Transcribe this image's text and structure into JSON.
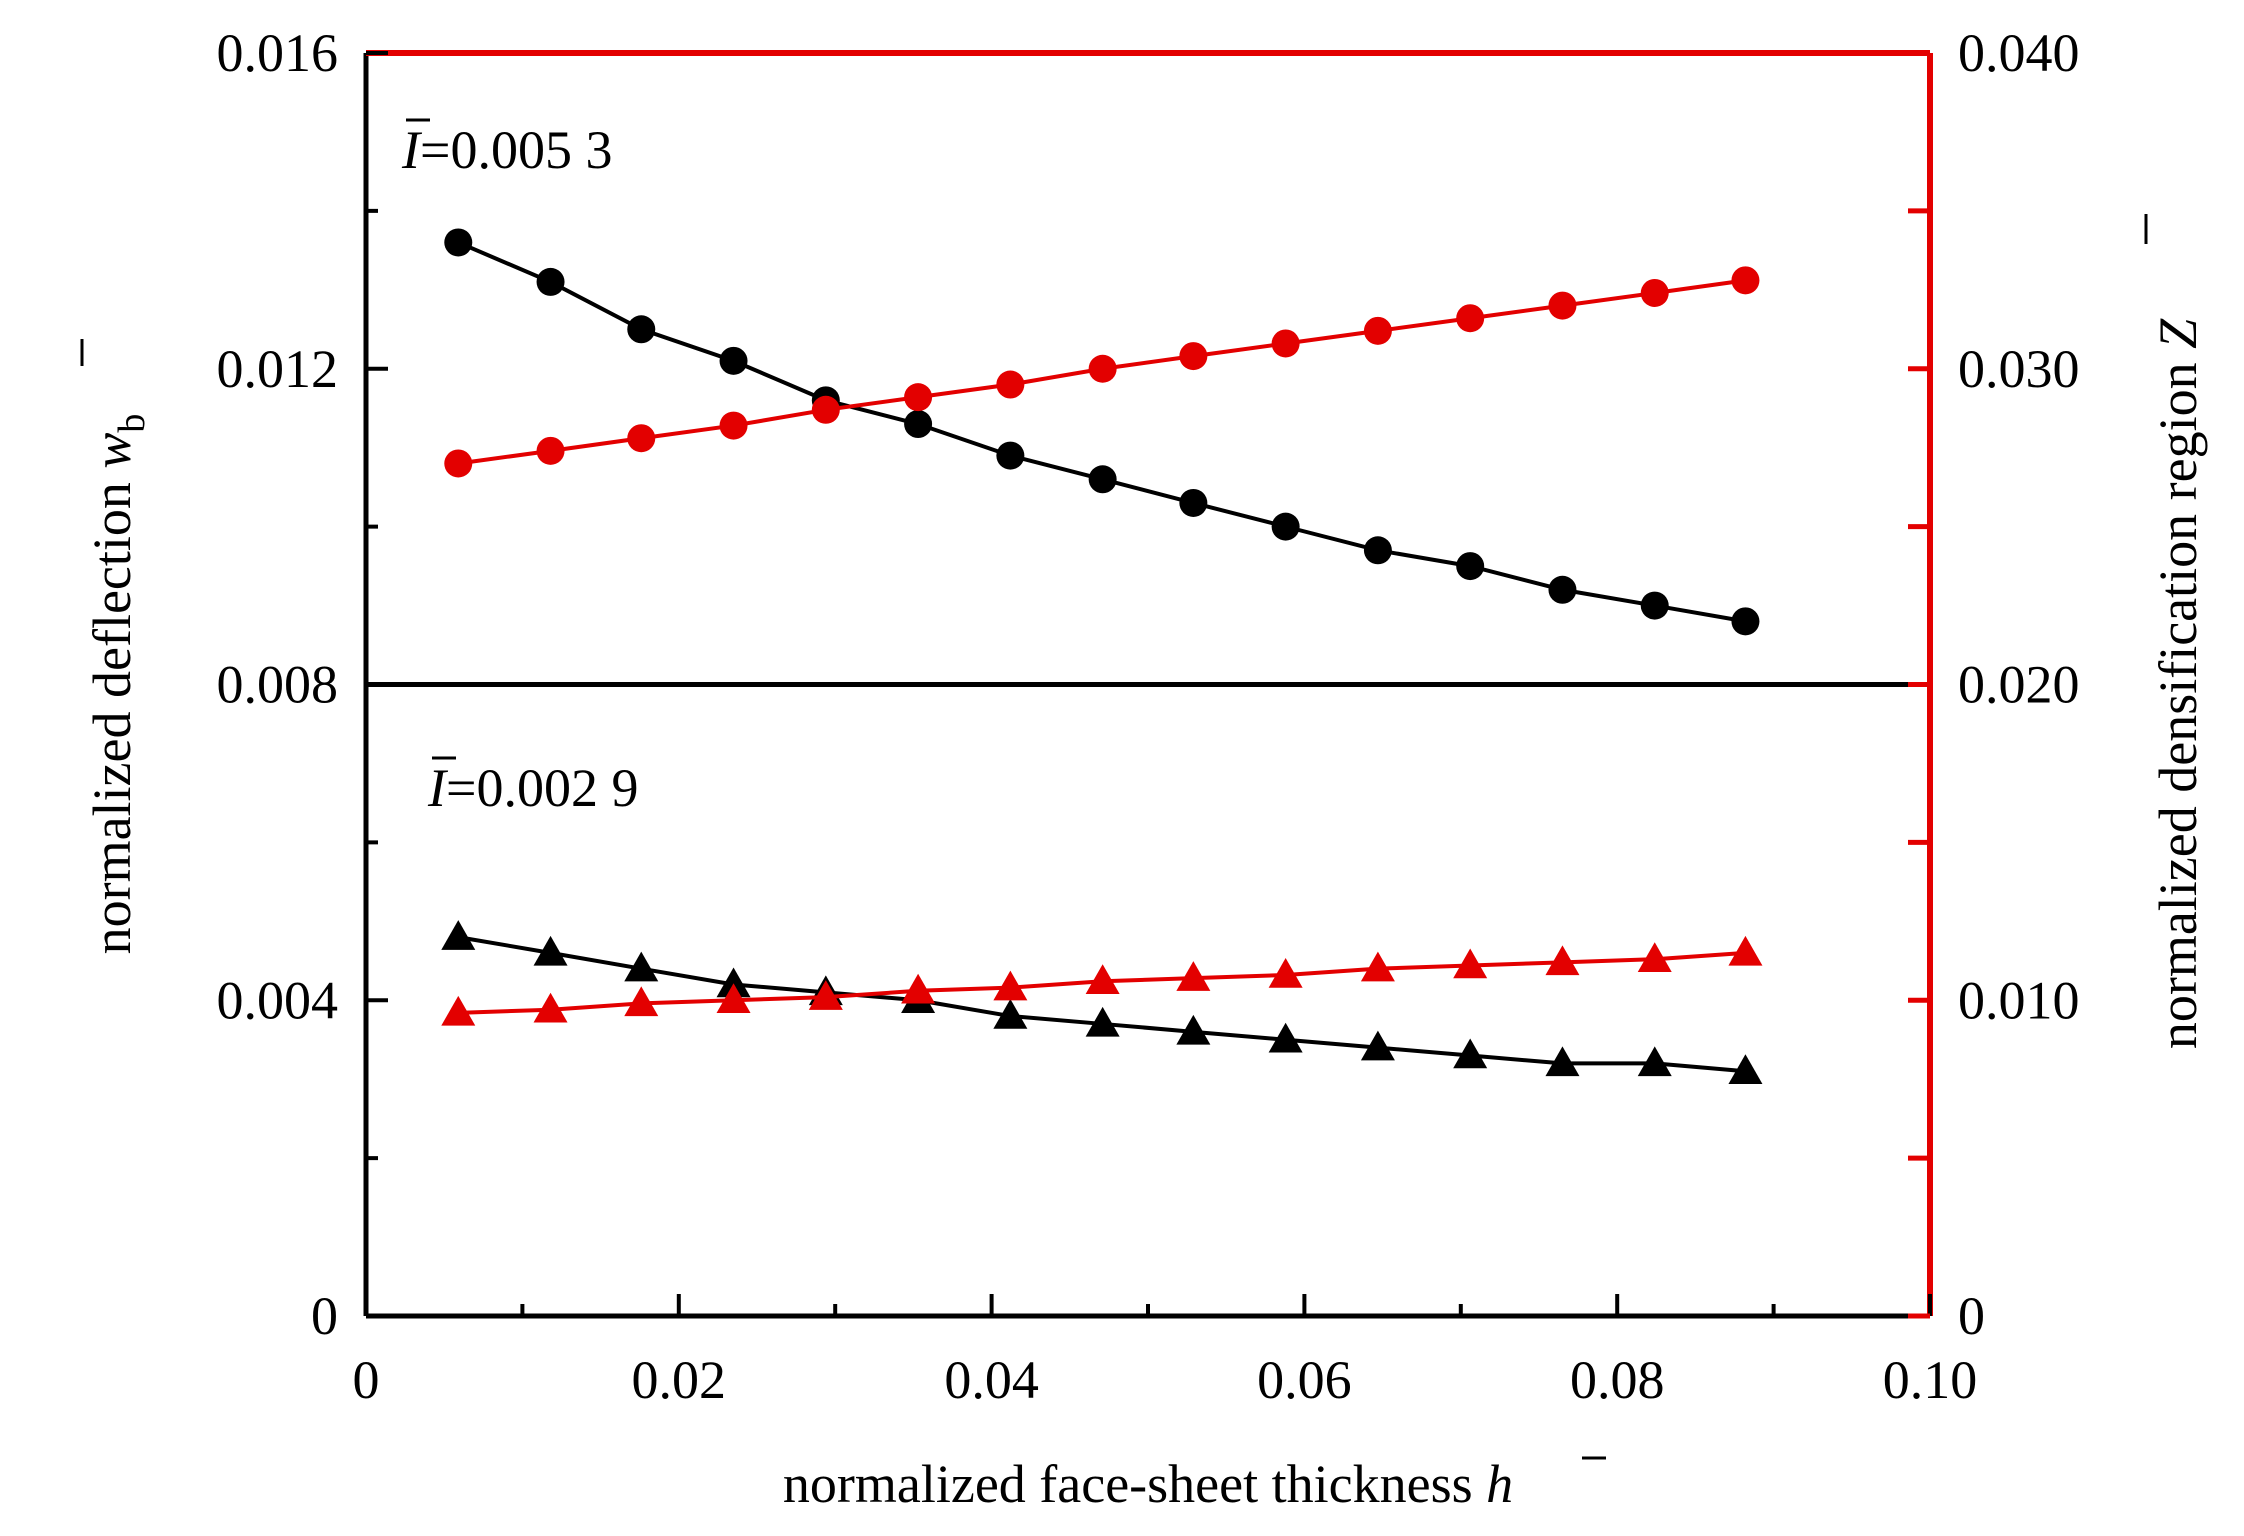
{
  "chart_data": {
    "type": "line",
    "xlabel": "normalized face-sheet thickness",
    "xlabel_symbol": "h",
    "ylabel_left": "normalized deflection",
    "ylabel_left_symbol": "w",
    "ylabel_left_subscript": "b",
    "ylabel_right": "normalized densification region",
    "ylabel_right_symbol": "Z",
    "xlim": [
      0,
      0.1
    ],
    "ylim_left": [
      0,
      0.016
    ],
    "ylim_right": [
      0,
      0.04
    ],
    "x_ticks": [
      "0",
      "0.02",
      "0.04",
      "0.06",
      "0.08",
      "0.10"
    ],
    "y_left_ticks": [
      "0",
      "0.004",
      "0.008",
      "0.012",
      "0.016"
    ],
    "y_right_ticks": [
      "0",
      "0.010",
      "0.020",
      "0.030",
      "0.040"
    ],
    "right_axis_color": "#e30000",
    "left_series_color": "#000000",
    "right_series_color": "#e30000",
    "panels": [
      {
        "annotation_symbol": "I",
        "annotation_value": "=0.005 3",
        "series": [
          {
            "axis": "left",
            "marker": "circle",
            "x": [
              0.0059,
              0.0118,
              0.0176,
              0.0235,
              0.0294,
              0.0353,
              0.0412,
              0.0471,
              0.0529,
              0.0588,
              0.0647,
              0.0706,
              0.0765,
              0.0824,
              0.0882
            ],
            "y": [
              0.0136,
              0.0131,
              0.0125,
              0.0121,
              0.0116,
              0.0113,
              0.0109,
              0.0106,
              0.0103,
              0.01,
              0.0097,
              0.0095,
              0.0092,
              0.009,
              0.0088
            ]
          },
          {
            "axis": "right",
            "marker": "circle",
            "x": [
              0.0059,
              0.0118,
              0.0176,
              0.0235,
              0.0294,
              0.0353,
              0.0412,
              0.0471,
              0.0529,
              0.0588,
              0.0647,
              0.0706,
              0.0765,
              0.0824,
              0.0882
            ],
            "y": [
              0.027,
              0.0274,
              0.0278,
              0.0282,
              0.0287,
              0.0291,
              0.0295,
              0.03,
              0.0304,
              0.0308,
              0.0312,
              0.0316,
              0.032,
              0.0324,
              0.0328
            ]
          }
        ]
      },
      {
        "annotation_symbol": "I",
        "annotation_value": "=0.002 9",
        "series": [
          {
            "axis": "left",
            "marker": "triangle",
            "x": [
              0.0059,
              0.0118,
              0.0176,
              0.0235,
              0.0294,
              0.0353,
              0.0412,
              0.0471,
              0.0529,
              0.0588,
              0.0647,
              0.0706,
              0.0765,
              0.0824,
              0.0882
            ],
            "y": [
              0.0048,
              0.0046,
              0.0044,
              0.0042,
              0.0041,
              0.004,
              0.0038,
              0.0037,
              0.0036,
              0.0035,
              0.0034,
              0.0033,
              0.0032,
              0.0032,
              0.0031
            ]
          },
          {
            "axis": "right",
            "marker": "triangle",
            "x": [
              0.0059,
              0.0118,
              0.0176,
              0.0235,
              0.0294,
              0.0353,
              0.0412,
              0.0471,
              0.0529,
              0.0588,
              0.0647,
              0.0706,
              0.0765,
              0.0824,
              0.0882
            ],
            "y": [
              0.0096,
              0.0097,
              0.0099,
              0.01,
              0.0101,
              0.0103,
              0.0104,
              0.0106,
              0.0107,
              0.0108,
              0.011,
              0.0111,
              0.0112,
              0.0113,
              0.0115
            ]
          }
        ]
      }
    ]
  }
}
